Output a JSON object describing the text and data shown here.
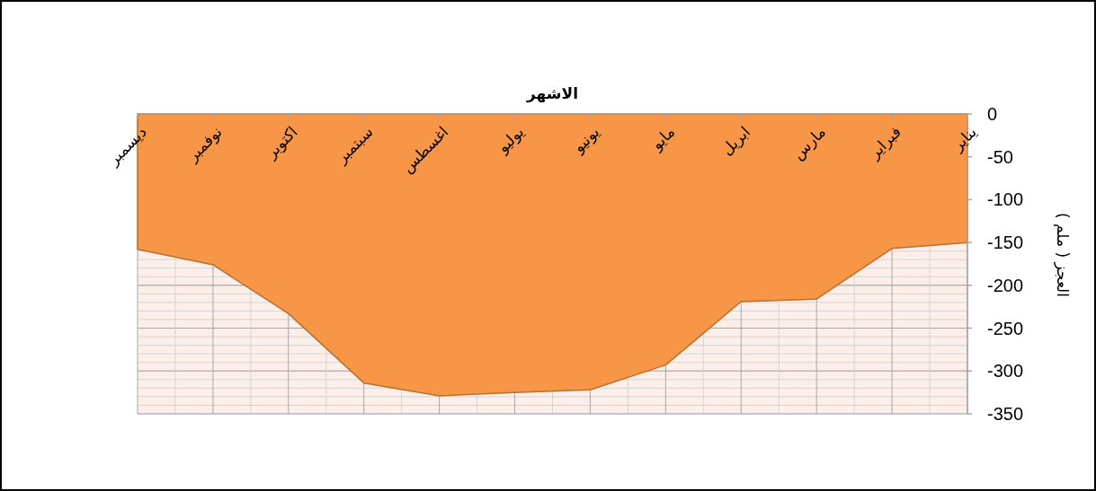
{
  "chart_data": {
    "type": "area",
    "xlabel": "الاشهر",
    "ylabel": "العجز ( ملم )",
    "categories": [
      "ديسمبر",
      "نوفمبر",
      "اكتوبر",
      "سبتمبر",
      "اغسطس",
      "يوليو",
      "يونيو",
      "مايو",
      "ابريل",
      "مارس",
      "فبراير",
      "يناير"
    ],
    "series": [
      {
        "color": "#f79646",
        "values": [
          -158,
          -176,
          -233,
          -314,
          -329,
          -325,
          -322,
          -293,
          -219,
          -216,
          -157,
          -150
        ]
      }
    ],
    "ylim": [
      -350,
      0
    ],
    "yticks": [
      0,
      -50,
      -100,
      -150,
      -200,
      -250,
      -300,
      -350
    ],
    "grid": true
  }
}
